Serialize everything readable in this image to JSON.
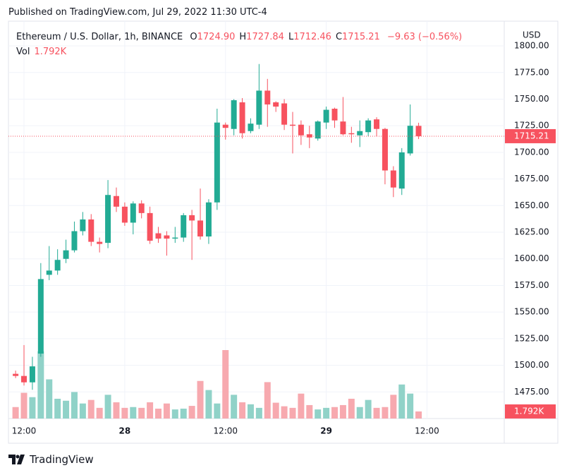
{
  "published": "Published on TradingView.com, Jul 29, 2022 11:30 UTC-4",
  "brand": "TradingView",
  "chart_data": {
    "type": "candlestick",
    "symbol": "Ethereum / U.S. Dollar, 1h, BINANCE",
    "currency": "USD",
    "legend": [
      {
        "key": "O",
        "value": "1724.90"
      },
      {
        "key": "H",
        "value": "1727.84"
      },
      {
        "key": "L",
        "value": "1712.46"
      },
      {
        "key": "C",
        "value": "1715.21"
      }
    ],
    "change": "−9.63 (−0.56%)",
    "volume_name": "Vol",
    "volume_label": "1.792K",
    "up_color": "#22ab94",
    "down_color": "#f7525f",
    "up_volume_color": "#90d2c8",
    "down_volume_color": "#f7a9af",
    "x": [
      -1,
      0,
      1,
      2,
      3,
      4,
      5,
      6,
      7,
      8,
      9,
      10,
      11,
      12,
      13,
      14,
      15,
      16,
      17,
      18,
      19,
      20,
      21,
      22,
      23,
      24,
      25,
      26,
      27,
      28,
      29,
      30,
      31,
      32,
      33,
      34,
      35,
      36,
      37,
      38,
      39,
      40,
      41,
      42,
      43,
      44,
      45,
      46,
      47
    ],
    "open": [
      1492,
      1490,
      1484,
      1511,
      1585,
      1589,
      1600,
      1608,
      1626,
      1637,
      1616,
      1615,
      1659,
      1649,
      1634,
      1652,
      1643,
      1624,
      1622,
      1619,
      1620,
      1641,
      1636,
      1621,
      1653,
      1726,
      1722,
      1747,
      1720,
      1726,
      1758,
      1747,
      1746,
      1726,
      1726,
      1717,
      1713,
      1728,
      1741,
      1729,
      1718,
      1716,
      1719,
      1731,
      1722,
      1683,
      1666,
      1699,
      1724.9
    ],
    "high": [
      1495,
      1519,
      1508,
      1596,
      1612,
      1609,
      1618,
      1635,
      1644,
      1642,
      1620,
      1674,
      1667,
      1653,
      1654,
      1655,
      1649,
      1630,
      1626,
      1630,
      1643,
      1646,
      1666,
      1656,
      1741,
      1728,
      1750,
      1751,
      1732,
      1783,
      1769,
      1748,
      1750,
      1738,
      1730,
      1725,
      1730,
      1743,
      1742,
      1752,
      1724,
      1730,
      1732,
      1733,
      1723,
      1687,
      1704,
      1745,
      1727.84
    ],
    "low": [
      1488,
      1481,
      1477,
      1508,
      1580,
      1585,
      1596,
      1606,
      1622,
      1612,
      1606,
      1610,
      1644,
      1631,
      1623,
      1638,
      1614,
      1615,
      1603,
      1615,
      1616,
      1599,
      1618,
      1614,
      1646,
      1712,
      1716,
      1713,
      1718,
      1722,
      1724,
      1738,
      1721,
      1699,
      1707,
      1704,
      1711,
      1722,
      1723,
      1716,
      1709,
      1705,
      1715,
      1715,
      1670,
      1658,
      1660,
      1697,
      1712.46
    ],
    "close": [
      1490,
      1484,
      1499,
      1581,
      1589,
      1599,
      1608,
      1626,
      1637,
      1616,
      1614,
      1660,
      1649,
      1634,
      1652,
      1643,
      1617,
      1619,
      1619,
      1620,
      1641,
      1636,
      1621,
      1653,
      1728,
      1723,
      1749,
      1718,
      1727,
      1758,
      1745,
      1743,
      1726,
      1725,
      1716,
      1714,
      1729,
      1740,
      1730,
      1717,
      1717,
      1720,
      1730,
      1722,
      1683,
      1667,
      1700,
      1725,
      1715.21
    ],
    "volume": [
      2.9,
      6.5,
      5.4,
      17.0,
      9.9,
      5.0,
      4.5,
      6.7,
      3.8,
      4.7,
      2.7,
      6.0,
      4.1,
      2.7,
      2.9,
      2.7,
      4.1,
      2.5,
      3.8,
      2.3,
      2.5,
      3.2,
      9.5,
      7.2,
      3.8,
      17.3,
      6.0,
      4.1,
      3.6,
      2.7,
      9.2,
      4.0,
      3.1,
      2.7,
      6.3,
      3.4,
      2.3,
      2.7,
      2.9,
      3.4,
      5.0,
      2.9,
      4.7,
      2.7,
      2.9,
      6.0,
      8.6,
      6.3,
      1.792
    ],
    "xlim": [
      -1.85,
      57.2
    ],
    "xticks": [
      {
        "value": 0,
        "label": "12:00"
      },
      {
        "value": 12,
        "label": "28"
      },
      {
        "value": 24,
        "label": "12:00"
      },
      {
        "value": 36,
        "label": "29"
      },
      {
        "value": 48,
        "label": "12:00"
      }
    ],
    "ylim": [
      1450,
      1816.6
    ],
    "yticks": [
      {
        "value": 1475,
        "label": "1475.00"
      },
      {
        "value": 1500,
        "label": "1500.00"
      },
      {
        "value": 1525,
        "label": "1525.00"
      },
      {
        "value": 1550,
        "label": "1550.00"
      },
      {
        "value": 1575,
        "label": "1575.00"
      },
      {
        "value": 1600,
        "label": "1600.00"
      },
      {
        "value": 1625,
        "label": "1625.00"
      },
      {
        "value": 1650,
        "label": "1650.00"
      },
      {
        "value": 1675,
        "label": "1675.00"
      },
      {
        "value": 1700,
        "label": "1700.00"
      },
      {
        "value": 1725,
        "label": "1725.00"
      },
      {
        "value": 1750,
        "label": "1750.00"
      },
      {
        "value": 1775,
        "label": "1775.00"
      },
      {
        "value": 1800,
        "label": "1800.00"
      }
    ],
    "grid": true
  }
}
